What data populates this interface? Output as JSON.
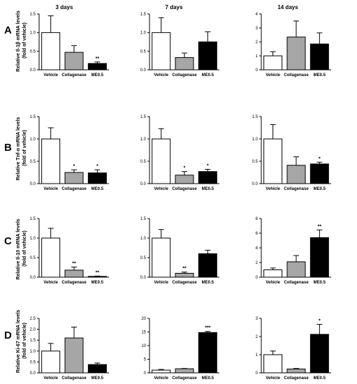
{
  "columns": [
    "3 days",
    "7 days",
    "14 days"
  ],
  "rows": [
    {
      "letter": "A",
      "ylabel_lines": [
        "Relative Il-1β mRNA levels",
        "(fold of vehicle)"
      ]
    },
    {
      "letter": "B",
      "ylabel_lines": [
        "Relative Tnf-α mRNA levels",
        "(fold of vehicle)"
      ]
    },
    {
      "letter": "C",
      "ylabel_lines": [
        "Relative Il-10 mRNA levels",
        "(fold of vehicle)"
      ]
    },
    {
      "letter": "D",
      "ylabel_lines": [
        "Relative Ki-67 mRNA levels",
        "(fold of vehicle)"
      ]
    }
  ],
  "colors": {
    "vehicle": "#ffffff",
    "collagenase": "#a6a6a6",
    "me05": "#000000",
    "axis": "#000000"
  },
  "chart_data": [
    {
      "type": "bar",
      "row": "A",
      "column": "3 days",
      "categories": [
        "Vehicle",
        "Collagenase",
        "ME0.5"
      ],
      "values": [
        1.0,
        0.47,
        0.17
      ],
      "errors": [
        0.45,
        0.18,
        0.04
      ],
      "significance": [
        "",
        "",
        "**"
      ],
      "ylim": [
        0,
        1.5
      ],
      "yticks": [
        "0.0",
        "0.5",
        "1.0",
        "1.5"
      ]
    },
    {
      "type": "bar",
      "row": "A",
      "column": "7 days",
      "categories": [
        "Vehicle",
        "Collagenase",
        "ME0.5"
      ],
      "values": [
        1.0,
        0.33,
        0.75
      ],
      "errors": [
        0.4,
        0.12,
        0.27
      ],
      "significance": [
        "",
        "",
        ""
      ],
      "ylim": [
        0,
        1.5
      ],
      "yticks": [
        "0.0",
        "0.5",
        "1.0",
        "1.5"
      ]
    },
    {
      "type": "bar",
      "row": "A",
      "column": "14 days",
      "categories": [
        "Vehicle",
        "Collagenase",
        "ME0.5"
      ],
      "values": [
        1.0,
        2.35,
        1.85
      ],
      "errors": [
        0.3,
        1.15,
        0.8
      ],
      "significance": [
        "",
        "",
        ""
      ],
      "ylim": [
        0,
        4
      ],
      "yticks": [
        "0",
        "1",
        "2",
        "3",
        "4"
      ]
    },
    {
      "type": "bar",
      "row": "B",
      "column": "3 days",
      "categories": [
        "Vehicle",
        "Collagenase",
        "ME0.5"
      ],
      "values": [
        1.0,
        0.25,
        0.24
      ],
      "errors": [
        0.25,
        0.06,
        0.07
      ],
      "significance": [
        "",
        "*",
        "*"
      ],
      "ylim": [
        0,
        1.5
      ],
      "yticks": [
        "0.0",
        "0.5",
        "1.0",
        "1.5"
      ]
    },
    {
      "type": "bar",
      "row": "B",
      "column": "7 days",
      "categories": [
        "Vehicle",
        "Collagenase",
        "ME0.5"
      ],
      "values": [
        1.0,
        0.19,
        0.27
      ],
      "errors": [
        0.23,
        0.08,
        0.05
      ],
      "significance": [
        "",
        "*",
        "*"
      ],
      "ylim": [
        0,
        1.5
      ],
      "yticks": [
        "0.0",
        "0.5",
        "1.0",
        "1.5"
      ]
    },
    {
      "type": "bar",
      "row": "B",
      "column": "14 days",
      "categories": [
        "Vehicle",
        "Collagenase",
        "ME0.5"
      ],
      "values": [
        1.0,
        0.41,
        0.44
      ],
      "errors": [
        0.32,
        0.19,
        0.04
      ],
      "significance": [
        "",
        "",
        "*"
      ],
      "ylim": [
        0,
        1.5
      ],
      "yticks": [
        "0.0",
        "0.5",
        "1.0",
        "1.5"
      ]
    },
    {
      "type": "bar",
      "row": "C",
      "column": "3 days",
      "categories": [
        "Vehicle",
        "Collagenase",
        "ME0.5"
      ],
      "values": [
        1.0,
        0.18,
        0.02
      ],
      "errors": [
        0.25,
        0.08,
        0.01
      ],
      "significance": [
        "",
        "**",
        "**"
      ],
      "ylim": [
        0,
        1.5
      ],
      "yticks": [
        "0.0",
        "0.5",
        "1.0",
        "1.5"
      ]
    },
    {
      "type": "bar",
      "row": "C",
      "column": "7 days",
      "categories": [
        "Vehicle",
        "Collagenase",
        "ME0.5"
      ],
      "values": [
        1.0,
        0.1,
        0.6
      ],
      "errors": [
        0.22,
        0.03,
        0.09
      ],
      "significance": [
        "",
        "**",
        ""
      ],
      "ylim": [
        0,
        1.5
      ],
      "yticks": [
        "0.0",
        "0.5",
        "1.0",
        "1.5"
      ]
    },
    {
      "type": "bar",
      "row": "C",
      "column": "14 days",
      "categories": [
        "Vehicle",
        "Collagenase",
        "ME0.5"
      ],
      "values": [
        1.0,
        2.1,
        5.4
      ],
      "errors": [
        0.25,
        0.85,
        1.05
      ],
      "significance": [
        "",
        "",
        "**"
      ],
      "ylim": [
        0,
        8
      ],
      "yticks": [
        "0",
        "2",
        "4",
        "6",
        "8"
      ]
    },
    {
      "type": "bar",
      "row": "D",
      "column": "3 days",
      "categories": [
        "Vehicle",
        "Collagenase",
        "ME0.5"
      ],
      "values": [
        1.0,
        1.6,
        0.38
      ],
      "errors": [
        0.35,
        0.5,
        0.07
      ],
      "significance": [
        "",
        "",
        ""
      ],
      "ylim": [
        0,
        2.5
      ],
      "yticks": [
        "0.0",
        "0.5",
        "1.0",
        "1.5",
        "2.0",
        "2.5"
      ]
    },
    {
      "type": "bar",
      "row": "D",
      "column": "7 days",
      "categories": [
        "Vehicle",
        "Collagenase",
        "ME0.5"
      ],
      "values": [
        1.0,
        1.5,
        14.8
      ],
      "errors": [
        0.25,
        0.1,
        0.4
      ],
      "significance": [
        "",
        "",
        "***"
      ],
      "ylim": [
        0,
        20
      ],
      "yticks": [
        "0",
        "5",
        "10",
        "15",
        "20"
      ]
    },
    {
      "type": "bar",
      "row": "D",
      "column": "14 days",
      "categories": [
        "Vehicle",
        "Collagenase",
        "ME0.5"
      ],
      "values": [
        1.0,
        0.21,
        2.12
      ],
      "errors": [
        0.2,
        0.03,
        0.55
      ],
      "significance": [
        "",
        "",
        "*"
      ],
      "ylim": [
        0,
        3
      ],
      "yticks": [
        "0",
        "1",
        "2",
        "3"
      ]
    }
  ]
}
